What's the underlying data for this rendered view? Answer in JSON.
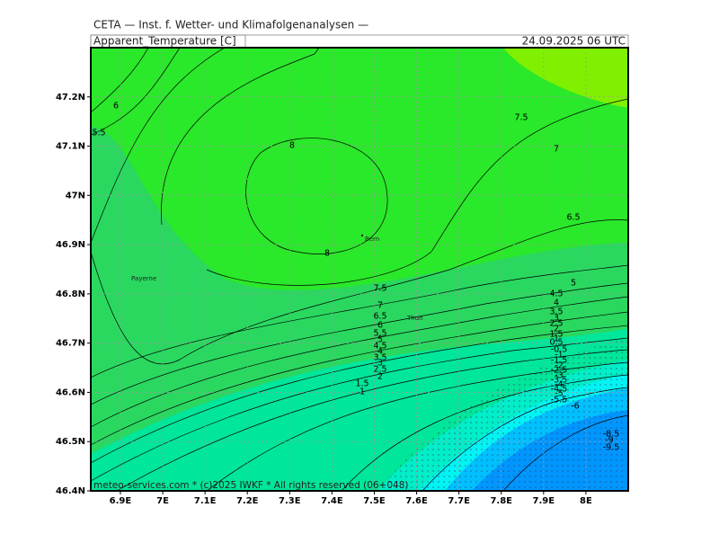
{
  "header": {
    "title": "CETA — Inst. f. Wetter- und Klimafolgenanalysen —",
    "variable": "Apparent_Temperature [C]",
    "datetime": "24.09.2025 06 UTC"
  },
  "footer": "meteo-services.com * (c)2025 IWKF * All rights reserved (06+048)",
  "map": {
    "xlim": [
      6.83,
      8.1
    ],
    "ylim": [
      46.4,
      47.3
    ],
    "xticks": [
      {
        "value": 6.9,
        "label": "6.9E"
      },
      {
        "value": 7,
        "label": "7E"
      },
      {
        "value": 7.1,
        "label": "7.1E"
      },
      {
        "value": 7.2,
        "label": "7.2E"
      },
      {
        "value": 7.3,
        "label": "7.3E"
      },
      {
        "value": 7.4,
        "label": "7.4E"
      },
      {
        "value": 7.5,
        "label": "7.5E"
      },
      {
        "value": 7.6,
        "label": "7.6E"
      },
      {
        "value": 7.7,
        "label": "7.7E"
      },
      {
        "value": 7.8,
        "label": "7.8E"
      },
      {
        "value": 7.9,
        "label": "7.9E"
      },
      {
        "value": 8,
        "label": "8E"
      }
    ],
    "yticks": [
      {
        "value": 46.4,
        "label": "46.4N"
      },
      {
        "value": 46.5,
        "label": "46.5N"
      },
      {
        "value": 46.6,
        "label": "46.6N"
      },
      {
        "value": 46.7,
        "label": "46.7N"
      },
      {
        "value": 46.8,
        "label": "46.8N"
      },
      {
        "value": 46.9,
        "label": "46.9N"
      },
      {
        "value": 47,
        "label": "47N"
      },
      {
        "value": 47.1,
        "label": "47.1N"
      },
      {
        "value": 47.2,
        "label": "47.2N"
      }
    ],
    "places": [
      "Bern",
      "Payerne",
      "Thun"
    ],
    "contour_labels": [
      8,
      8,
      7.5,
      7,
      6.5,
      6,
      5.5,
      7.5,
      7,
      6.5,
      6,
      5.5,
      5,
      4.5,
      4,
      3.5,
      3,
      2.5,
      2,
      1.5,
      1,
      5,
      4.5,
      4,
      3.5,
      3,
      2.5,
      2,
      1.5,
      1,
      0.5,
      -0.5,
      -1,
      -1.5,
      -2,
      -2.5,
      -3,
      -3.5,
      -4,
      -4.5,
      -5,
      -5.5,
      -6,
      -8.5,
      -9,
      -9.5
    ]
  }
}
